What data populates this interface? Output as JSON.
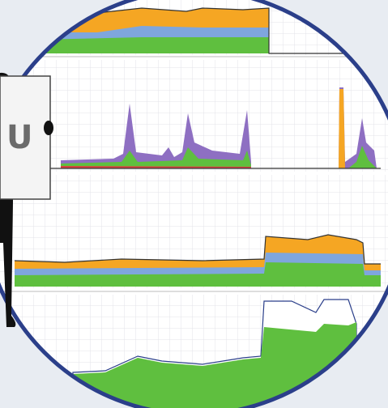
{
  "sign": {
    "text": "U"
  }
}
